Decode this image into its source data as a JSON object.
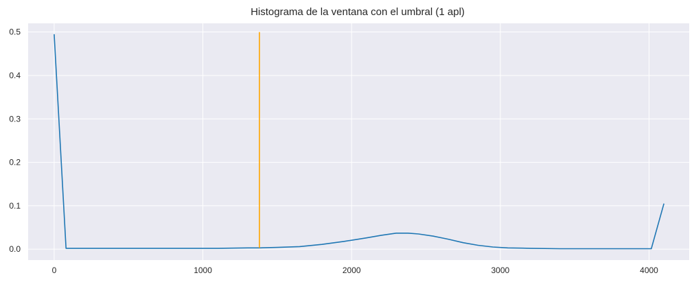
{
  "chart_data": {
    "type": "line",
    "title": "Histograma de la ventana con el umbral (1 apl)",
    "xlabel": "",
    "ylabel": "",
    "xlim": [
      -175,
      4270
    ],
    "ylim": [
      -0.025,
      0.52
    ],
    "xticks": [
      0,
      1000,
      2000,
      3000,
      4000
    ],
    "yticks": [
      0.0,
      0.1,
      0.2,
      0.3,
      0.4,
      0.5
    ],
    "ytick_labels": [
      "0.0",
      "0.1",
      "0.2",
      "0.3",
      "0.4",
      "0.5"
    ],
    "grid": true,
    "background_color": "#eaeaf2",
    "grid_color": "#ffffff",
    "series": [
      {
        "color": "#1f77b4",
        "x": [
          0,
          80,
          150,
          300,
          500,
          700,
          900,
          1100,
          1300,
          1380,
          1500,
          1650,
          1800,
          1950,
          2100,
          2200,
          2300,
          2380,
          2450,
          2550,
          2650,
          2750,
          2850,
          2950,
          3050,
          3200,
          3400,
          3600,
          3800,
          4000,
          4015,
          4100
        ],
        "y": [
          0.495,
          0.002,
          0.002,
          0.002,
          0.002,
          0.002,
          0.002,
          0.002,
          0.003,
          0.003,
          0.004,
          0.006,
          0.011,
          0.018,
          0.026,
          0.032,
          0.037,
          0.037,
          0.035,
          0.03,
          0.023,
          0.015,
          0.009,
          0.005,
          0.003,
          0.002,
          0.001,
          0.001,
          0.001,
          0.001,
          0.001,
          0.105
        ]
      },
      {
        "color": "#ffa500",
        "x": [
          1380,
          1380
        ],
        "y": [
          0.003,
          0.5
        ]
      }
    ]
  }
}
